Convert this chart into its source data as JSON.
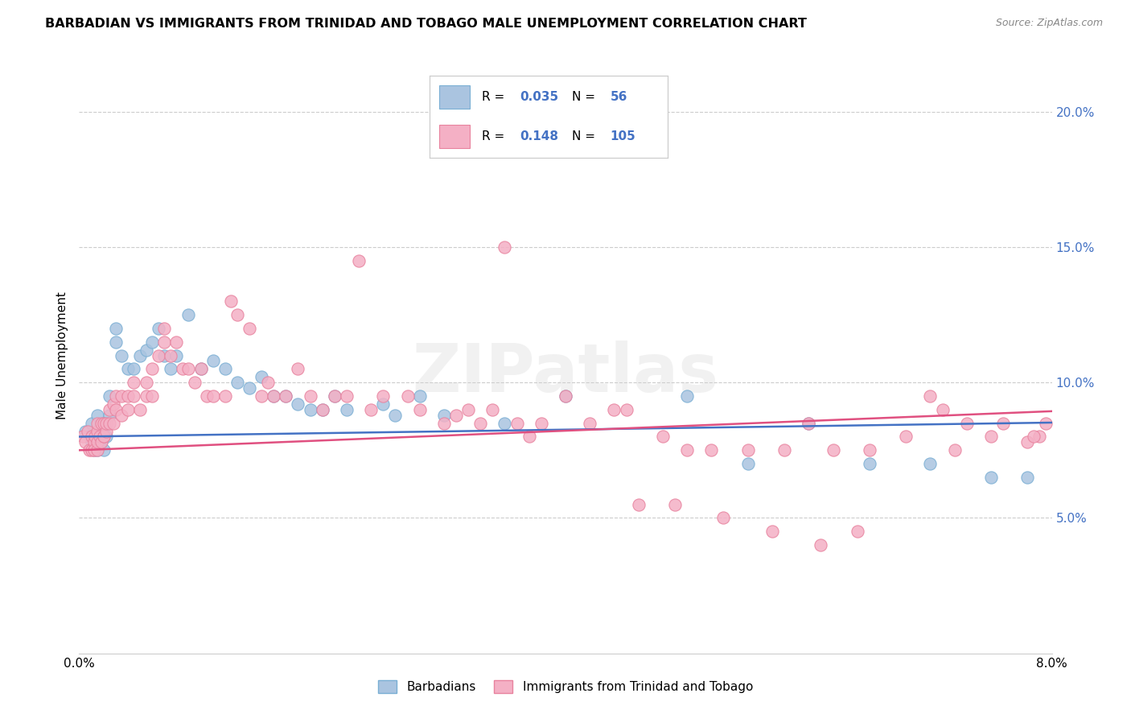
{
  "title": "BARBADIAN VS IMMIGRANTS FROM TRINIDAD AND TOBAGO MALE UNEMPLOYMENT CORRELATION CHART",
  "source": "Source: ZipAtlas.com",
  "ylabel": "Male Unemployment",
  "xlim": [
    0.0,
    8.0
  ],
  "ylim": [
    0.0,
    22.0
  ],
  "yticks": [
    5.0,
    10.0,
    15.0,
    20.0
  ],
  "ytick_labels": [
    "5.0%",
    "10.0%",
    "15.0%",
    "20.0%"
  ],
  "series1_color": "#aac4e0",
  "series1_edge": "#7aafd4",
  "series2_color": "#f4b0c5",
  "series2_edge": "#e8829e",
  "line1_color": "#4472c4",
  "line2_color": "#e05080",
  "legend1_R": "0.035",
  "legend1_N": "56",
  "legend2_R": "0.148",
  "legend2_N": "105",
  "legend1_label": "Barbadians",
  "legend2_label": "Immigrants from Trinidad and Tobago",
  "watermark": "ZIPatlas",
  "barbadians_x": [
    0.05,
    0.08,
    0.1,
    0.1,
    0.12,
    0.12,
    0.15,
    0.15,
    0.15,
    0.17,
    0.18,
    0.2,
    0.2,
    0.22,
    0.22,
    0.25,
    0.25,
    0.3,
    0.3,
    0.35,
    0.4,
    0.45,
    0.5,
    0.55,
    0.6,
    0.65,
    0.7,
    0.75,
    0.8,
    0.9,
    1.0,
    1.1,
    1.2,
    1.3,
    1.4,
    1.5,
    1.6,
    1.7,
    1.8,
    1.9,
    2.0,
    2.1,
    2.2,
    2.5,
    2.6,
    2.8,
    3.0,
    3.5,
    4.0,
    5.0,
    5.5,
    6.0,
    6.5,
    7.0,
    7.5,
    7.8
  ],
  "barbadians_y": [
    8.2,
    8.0,
    7.8,
    8.5,
    8.0,
    7.5,
    8.8,
    8.0,
    7.5,
    8.2,
    7.8,
    8.5,
    7.5,
    8.0,
    8.5,
    9.5,
    8.8,
    12.0,
    11.5,
    11.0,
    10.5,
    10.5,
    11.0,
    11.2,
    11.5,
    12.0,
    11.0,
    10.5,
    11.0,
    12.5,
    10.5,
    10.8,
    10.5,
    10.0,
    9.8,
    10.2,
    9.5,
    9.5,
    9.2,
    9.0,
    9.0,
    9.5,
    9.0,
    9.2,
    8.8,
    9.5,
    8.8,
    8.5,
    9.5,
    9.5,
    7.0,
    8.5,
    7.0,
    7.0,
    6.5,
    6.5
  ],
  "trinidad_x": [
    0.03,
    0.05,
    0.07,
    0.08,
    0.1,
    0.1,
    0.12,
    0.12,
    0.13,
    0.15,
    0.15,
    0.15,
    0.15,
    0.17,
    0.18,
    0.18,
    0.2,
    0.2,
    0.2,
    0.22,
    0.22,
    0.25,
    0.25,
    0.28,
    0.28,
    0.3,
    0.3,
    0.35,
    0.35,
    0.4,
    0.4,
    0.45,
    0.45,
    0.5,
    0.55,
    0.55,
    0.6,
    0.6,
    0.65,
    0.7,
    0.7,
    0.75,
    0.8,
    0.85,
    0.9,
    0.95,
    1.0,
    1.05,
    1.1,
    1.2,
    1.25,
    1.3,
    1.4,
    1.5,
    1.55,
    1.6,
    1.7,
    1.8,
    1.9,
    2.0,
    2.1,
    2.2,
    2.3,
    2.4,
    2.5,
    2.7,
    2.8,
    3.0,
    3.2,
    3.4,
    3.5,
    3.6,
    3.8,
    4.0,
    4.2,
    4.4,
    4.5,
    4.8,
    5.0,
    5.2,
    5.5,
    5.8,
    6.0,
    6.2,
    6.5,
    6.8,
    7.0,
    7.2,
    7.5,
    7.8,
    7.9,
    3.1,
    3.3,
    3.7,
    4.6,
    4.9,
    5.3,
    5.7,
    6.1,
    6.4,
    7.1,
    7.3,
    7.6,
    7.85,
    7.95
  ],
  "trinidad_y": [
    8.0,
    7.8,
    8.2,
    7.5,
    7.5,
    8.0,
    7.8,
    7.5,
    8.0,
    8.2,
    8.5,
    7.5,
    7.8,
    8.0,
    7.8,
    8.5,
    8.0,
    8.5,
    8.0,
    8.2,
    8.5,
    8.5,
    9.0,
    9.2,
    8.5,
    9.0,
    9.5,
    8.8,
    9.5,
    9.0,
    9.5,
    10.0,
    9.5,
    9.0,
    9.5,
    10.0,
    10.5,
    9.5,
    11.0,
    11.5,
    12.0,
    11.0,
    11.5,
    10.5,
    10.5,
    10.0,
    10.5,
    9.5,
    9.5,
    9.5,
    13.0,
    12.5,
    12.0,
    9.5,
    10.0,
    9.5,
    9.5,
    10.5,
    9.5,
    9.0,
    9.5,
    9.5,
    14.5,
    9.0,
    9.5,
    9.5,
    9.0,
    8.5,
    9.0,
    9.0,
    15.0,
    8.5,
    8.5,
    9.5,
    8.5,
    9.0,
    9.0,
    8.0,
    7.5,
    7.5,
    7.5,
    7.5,
    8.5,
    7.5,
    7.5,
    8.0,
    9.5,
    7.5,
    8.0,
    7.8,
    8.0,
    8.8,
    8.5,
    8.0,
    5.5,
    5.5,
    5.0,
    4.5,
    4.0,
    4.5,
    9.0,
    8.5,
    8.5,
    8.0,
    8.5
  ]
}
